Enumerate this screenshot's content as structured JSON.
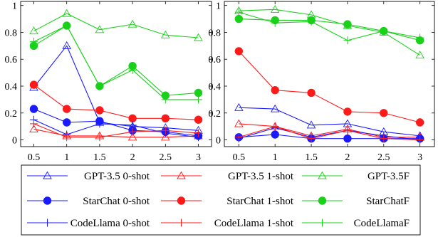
{
  "colors": {
    "gpt": "#1a1aff",
    "starchat": "#ff1a1a",
    "codellama": "#1ad11a",
    "frame": "#000000"
  },
  "chart_data": [
    {
      "type": "line",
      "x": [
        0.5,
        1,
        1.5,
        2,
        2.5,
        3
      ],
      "xticks": [
        "0.5",
        "1",
        "1.5",
        "2",
        "2.5",
        "3"
      ],
      "yticks": [
        "0",
        "0.2",
        "0.4",
        "0.6",
        "0.8",
        "1"
      ],
      "xlim": [
        0.3,
        3.2
      ],
      "ylim": [
        -0.05,
        1.03
      ],
      "grid": false,
      "series": [
        {
          "name": "GPT-3.5 0-shot",
          "color": "blue",
          "marker": "triangle",
          "values": [
            0.39,
            0.7,
            0.13,
            0.1,
            0.09,
            0.07
          ]
        },
        {
          "name": "GPT-3.5 1-shot",
          "color": "red",
          "marker": "triangle",
          "values": [
            0.08,
            0.03,
            0.03,
            0.02,
            0.02,
            0.03
          ]
        },
        {
          "name": "GPT-3.5F",
          "color": "green",
          "marker": "triangle",
          "values": [
            0.81,
            0.94,
            0.82,
            0.86,
            0.78,
            0.76
          ]
        },
        {
          "name": "StarChat 0-shot",
          "color": "blue",
          "marker": "circle",
          "values": [
            0.23,
            0.13,
            0.14,
            0.07,
            0.06,
            0.03
          ]
        },
        {
          "name": "StarChat 1-shot",
          "color": "red",
          "marker": "circle",
          "values": [
            0.41,
            0.23,
            0.22,
            0.16,
            0.16,
            0.15
          ]
        },
        {
          "name": "StarChatF",
          "color": "green",
          "marker": "circle",
          "values": [
            0.7,
            0.85,
            0.4,
            0.55,
            0.33,
            0.35
          ]
        },
        {
          "name": "CodeLlama 0-shot",
          "color": "blue",
          "marker": "plus",
          "values": [
            0.15,
            0.04,
            0.12,
            0.11,
            0.05,
            0.02
          ]
        },
        {
          "name": "CodeLlama 1-shot",
          "color": "red",
          "marker": "plus",
          "values": [
            0.12,
            0.02,
            0.02,
            0.06,
            0.07,
            0.05
          ]
        },
        {
          "name": "CodeLlamaF",
          "color": "green",
          "marker": "plus",
          "values": [
            0.73,
            0.85,
            0.4,
            0.52,
            0.3,
            0.3
          ]
        }
      ]
    },
    {
      "type": "line",
      "x": [
        0.5,
        1,
        1.5,
        2,
        2.5,
        3
      ],
      "xticks": [
        "0.5",
        "1",
        "1.5",
        "2",
        "2.5",
        "3"
      ],
      "yticks": [
        "0",
        "0.2",
        "0.4",
        "0.6",
        "0.8",
        "1"
      ],
      "xlim": [
        0.3,
        3.2
      ],
      "ylim": [
        -0.05,
        1.03
      ],
      "grid": false,
      "series": [
        {
          "name": "GPT-3.5 0-shot",
          "color": "blue",
          "marker": "triangle",
          "values": [
            0.24,
            0.23,
            0.11,
            0.12,
            0.06,
            0.03
          ]
        },
        {
          "name": "GPT-3.5 1-shot",
          "color": "red",
          "marker": "triangle",
          "values": [
            0.12,
            0.1,
            0.03,
            0.08,
            0.02,
            0.02
          ]
        },
        {
          "name": "GPT-3.5F",
          "color": "green",
          "marker": "triangle",
          "values": [
            0.96,
            0.97,
            0.93,
            0.85,
            0.8,
            0.63
          ]
        },
        {
          "name": "StarChat 0-shot",
          "color": "blue",
          "marker": "circle",
          "values": [
            0.02,
            0.04,
            0.01,
            0.01,
            0.01,
            0.01
          ]
        },
        {
          "name": "StarChat 1-shot",
          "color": "red",
          "marker": "circle",
          "values": [
            0.66,
            0.37,
            0.35,
            0.21,
            0.2,
            0.13
          ]
        },
        {
          "name": "StarChatF",
          "color": "green",
          "marker": "circle",
          "values": [
            0.9,
            0.89,
            0.89,
            0.86,
            0.81,
            0.74
          ]
        },
        {
          "name": "CodeLlama 0-shot",
          "color": "blue",
          "marker": "plus",
          "values": [
            0.01,
            0.09,
            0.02,
            0.07,
            0.03,
            0.0
          ]
        },
        {
          "name": "CodeLlama 1-shot",
          "color": "red",
          "marker": "plus",
          "values": [
            0.02,
            0.1,
            0.01,
            0.07,
            0.01,
            0.0
          ]
        },
        {
          "name": "CodeLlamaF",
          "color": "green",
          "marker": "plus",
          "values": [
            0.95,
            0.87,
            0.88,
            0.74,
            0.81,
            0.76
          ]
        }
      ]
    }
  ],
  "legend": {
    "placement": "bottom",
    "entries": [
      [
        "GPT-3.5 0-shot",
        "GPT-3.5 1-shot",
        "GPT-3.5F"
      ],
      [
        "StarChat 0-shot",
        "StarChat 1-shot",
        "StarChatF"
      ],
      [
        "CodeLlama 0-shot",
        "CodeLlama 1-shot",
        "CodeLlamaF"
      ]
    ]
  }
}
